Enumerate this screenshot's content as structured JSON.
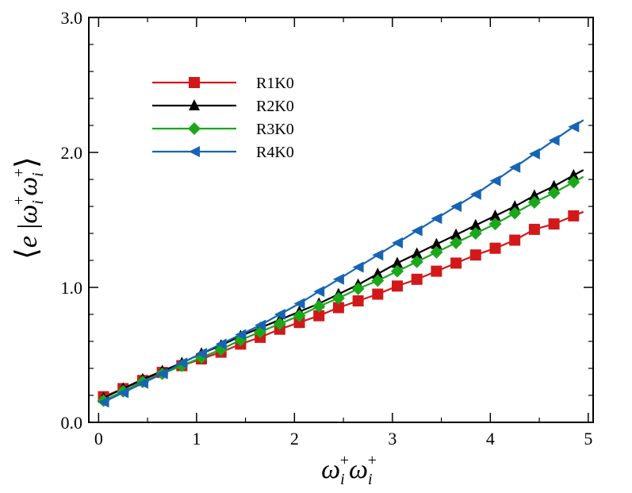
{
  "chart_data": {
    "type": "line",
    "title": "",
    "xlabel": "ω_i^+ ω_i^+",
    "ylabel": "⟨e | ω_i^+ ω_i^+⟩",
    "xlim": [
      -0.1,
      5.05
    ],
    "ylim": [
      0.0,
      3.0
    ],
    "grid": false,
    "legend_position": "upper-left",
    "x_ticks": [
      0,
      1,
      2,
      3,
      4,
      5
    ],
    "x_tick_labels": [
      "0",
      "1",
      "2",
      "3",
      "4",
      "5"
    ],
    "y_ticks": [
      0.0,
      1.0,
      2.0,
      3.0
    ],
    "y_tick_labels": [
      "0.0",
      "1.0",
      "2.0",
      "3.0"
    ],
    "x": [
      0.05,
      0.25,
      0.45,
      0.65,
      0.85,
      1.05,
      1.25,
      1.45,
      1.65,
      1.85,
      2.05,
      2.25,
      2.45,
      2.65,
      2.85,
      3.05,
      3.25,
      3.45,
      3.65,
      3.85,
      4.05,
      4.25,
      4.45,
      4.65,
      4.85
    ],
    "series": [
      {
        "name": "R1K0",
        "color": "#d11919",
        "marker": "square",
        "values": [
          0.19,
          0.25,
          0.31,
          0.37,
          0.42,
          0.47,
          0.52,
          0.58,
          0.63,
          0.69,
          0.74,
          0.79,
          0.85,
          0.9,
          0.95,
          1.01,
          1.06,
          1.12,
          1.18,
          1.24,
          1.29,
          1.35,
          1.43,
          1.47,
          1.53
        ]
      },
      {
        "name": "R2K0",
        "color": "#000000",
        "marker": "triangle-up",
        "values": [
          0.18,
          0.25,
          0.32,
          0.38,
          0.44,
          0.51,
          0.57,
          0.64,
          0.7,
          0.76,
          0.82,
          0.88,
          0.95,
          1.02,
          1.1,
          1.18,
          1.25,
          1.32,
          1.39,
          1.46,
          1.53,
          1.6,
          1.68,
          1.75,
          1.83
        ]
      },
      {
        "name": "R3K0",
        "color": "#1aa81a",
        "marker": "diamond",
        "values": [
          0.16,
          0.23,
          0.3,
          0.36,
          0.42,
          0.48,
          0.54,
          0.61,
          0.67,
          0.73,
          0.79,
          0.86,
          0.92,
          0.99,
          1.05,
          1.12,
          1.19,
          1.26,
          1.33,
          1.4,
          1.47,
          1.55,
          1.63,
          1.7,
          1.78
        ]
      },
      {
        "name": "R4K0",
        "color": "#1764b4",
        "marker": "triangle-left",
        "values": [
          0.15,
          0.22,
          0.29,
          0.36,
          0.44,
          0.51,
          0.58,
          0.65,
          0.72,
          0.8,
          0.88,
          0.97,
          1.06,
          1.15,
          1.24,
          1.33,
          1.42,
          1.51,
          1.6,
          1.69,
          1.79,
          1.89,
          1.99,
          2.09,
          2.19
        ]
      }
    ]
  }
}
